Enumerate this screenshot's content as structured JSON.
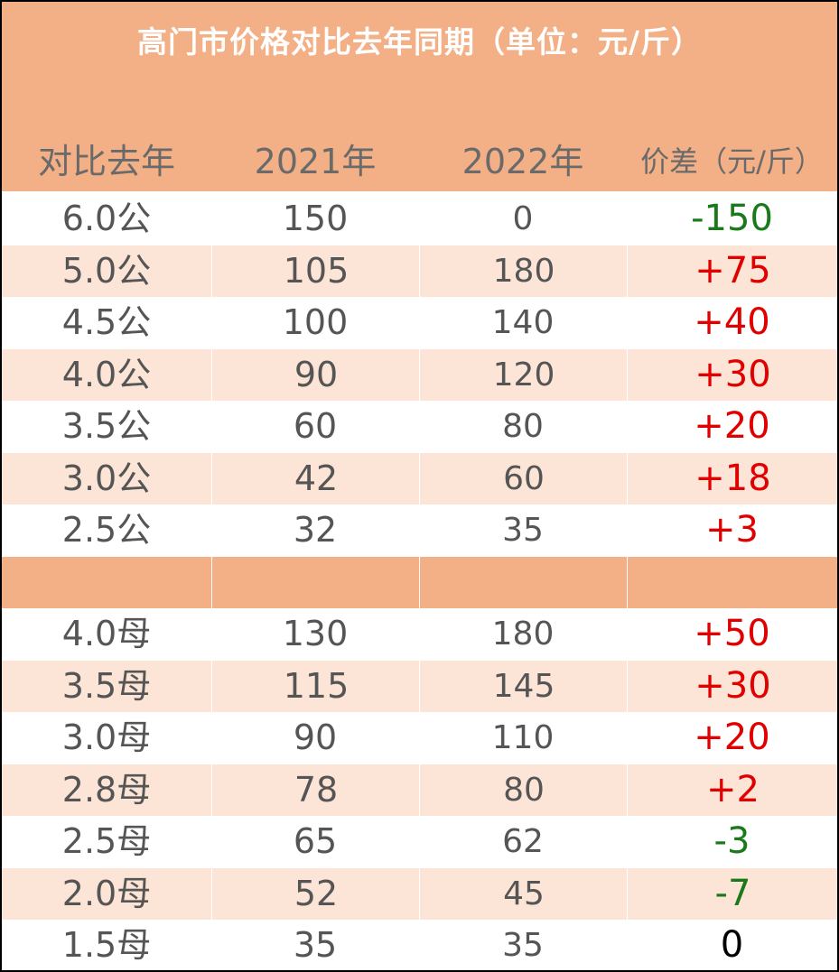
{
  "title": "高门市价格对比去年同期（单位：元/斤）",
  "headers": [
    "对比去年",
    "2021年",
    "2022年",
    "价差（元/斤）"
  ],
  "colors": {
    "header_bg": "#f3b086",
    "alt_row": "#fce4d6",
    "up": "#e00000",
    "down": "#1a7a1a",
    "zero": "#000000"
  },
  "rows": [
    {
      "spec": "6.0公",
      "y2021": "150",
      "y2022": "0",
      "diff": "-150",
      "trend": "down"
    },
    {
      "spec": "5.0公",
      "y2021": "105",
      "y2022": "180",
      "diff": "+75",
      "trend": "up"
    },
    {
      "spec": "4.5公",
      "y2021": "100",
      "y2022": "140",
      "diff": "+40",
      "trend": "up"
    },
    {
      "spec": "4.0公",
      "y2021": "90",
      "y2022": "120",
      "diff": "+30",
      "trend": "up"
    },
    {
      "spec": "3.5公",
      "y2021": "60",
      "y2022": "80",
      "diff": "+20",
      "trend": "up"
    },
    {
      "spec": "3.0公",
      "y2021": "42",
      "y2022": "60",
      "diff": "+18",
      "trend": "up"
    },
    {
      "spec": "2.5公",
      "y2021": "32",
      "y2022": "35",
      "diff": "+3",
      "trend": "up"
    },
    {
      "spec": "",
      "y2021": "",
      "y2022": "",
      "diff": "",
      "trend": "sep"
    },
    {
      "spec": "4.0母",
      "y2021": "130",
      "y2022": "180",
      "diff": "+50",
      "trend": "up"
    },
    {
      "spec": "3.5母",
      "y2021": "115",
      "y2022": "145",
      "diff": "+30",
      "trend": "up"
    },
    {
      "spec": "3.0母",
      "y2021": "90",
      "y2022": "110",
      "diff": "+20",
      "trend": "up"
    },
    {
      "spec": "2.8母",
      "y2021": "78",
      "y2022": "80",
      "diff": "+2",
      "trend": "up"
    },
    {
      "spec": "2.5母",
      "y2021": "65",
      "y2022": "62",
      "diff": "-3",
      "trend": "down"
    },
    {
      "spec": "2.0母",
      "y2021": "52",
      "y2022": "45",
      "diff": "-7",
      "trend": "down"
    },
    {
      "spec": "1.5母",
      "y2021": "35",
      "y2022": "35",
      "diff": "0",
      "trend": "zero"
    }
  ]
}
